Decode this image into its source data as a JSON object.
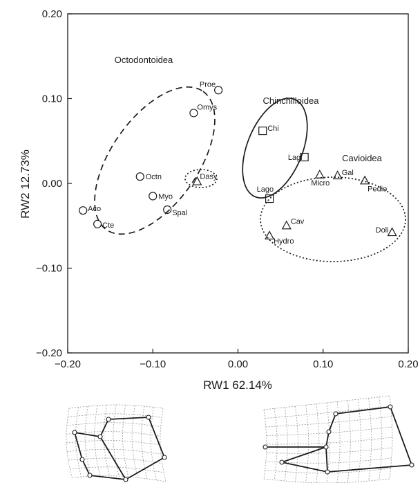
{
  "chart_data": {
    "type": "scatter",
    "xlabel": "RW1 62.14%",
    "ylabel": "RW2 12.73%",
    "xlim": [
      -0.2,
      0.2
    ],
    "ylim": [
      -0.2,
      0.2
    ],
    "xticks": [
      -0.2,
      -0.1,
      0.0,
      0.1,
      0.2
    ],
    "xtick_labels": [
      "−0.20",
      "−0.10",
      "0.00",
      "0.10",
      "0.20"
    ],
    "yticks": [
      -0.2,
      -0.1,
      0.0,
      0.1,
      0.2
    ],
    "ytick_labels": [
      "−0.20",
      "−0.10",
      "0.00",
      "0.10",
      "0.20"
    ],
    "grid": false,
    "legend": "none",
    "points": [
      {
        "label": "Proe",
        "x": -0.023,
        "y": 0.11,
        "marker": "circle"
      },
      {
        "label": "Omys",
        "x": -0.052,
        "y": 0.083,
        "marker": "circle"
      },
      {
        "label": "Octn",
        "x": -0.115,
        "y": 0.008,
        "marker": "circle"
      },
      {
        "label": "Myo",
        "x": -0.1,
        "y": -0.015,
        "marker": "circle"
      },
      {
        "label": "Spal",
        "x": -0.083,
        "y": -0.031,
        "marker": "circle"
      },
      {
        "label": "Aco",
        "x": -0.182,
        "y": -0.032,
        "marker": "circle"
      },
      {
        "label": "Cte",
        "x": -0.165,
        "y": -0.048,
        "marker": "circle"
      },
      {
        "label": "Dasy",
        "x": -0.048,
        "y": 0.002,
        "marker": "triangle"
      },
      {
        "label": "Chi",
        "x": 0.029,
        "y": 0.062,
        "marker": "square"
      },
      {
        "label": "Lagi",
        "x": 0.078,
        "y": 0.031,
        "marker": "square"
      },
      {
        "label": "Lago",
        "x": 0.037,
        "y": -0.018,
        "marker": "square"
      },
      {
        "label": "Micro",
        "x": 0.096,
        "y": 0.01,
        "marker": "triangle"
      },
      {
        "label": "Gal",
        "x": 0.117,
        "y": 0.009,
        "marker": "triangle"
      },
      {
        "label": "Pedio",
        "x": 0.149,
        "y": 0.003,
        "marker": "triangle"
      },
      {
        "label": "Doli",
        "x": 0.181,
        "y": -0.058,
        "marker": "triangle"
      },
      {
        "label": "Cav",
        "x": 0.057,
        "y": -0.05,
        "marker": "triangle"
      },
      {
        "label": "Hydro",
        "x": 0.037,
        "y": -0.062,
        "marker": "triangle"
      }
    ],
    "groups": [
      {
        "label": "Octodontoidea",
        "style": "dashed"
      },
      {
        "label": "Chinchilloidea",
        "style": "solid"
      },
      {
        "label": "Cavioidea",
        "style": "dotted"
      },
      {
        "label": "",
        "style": "dotted"
      }
    ]
  }
}
